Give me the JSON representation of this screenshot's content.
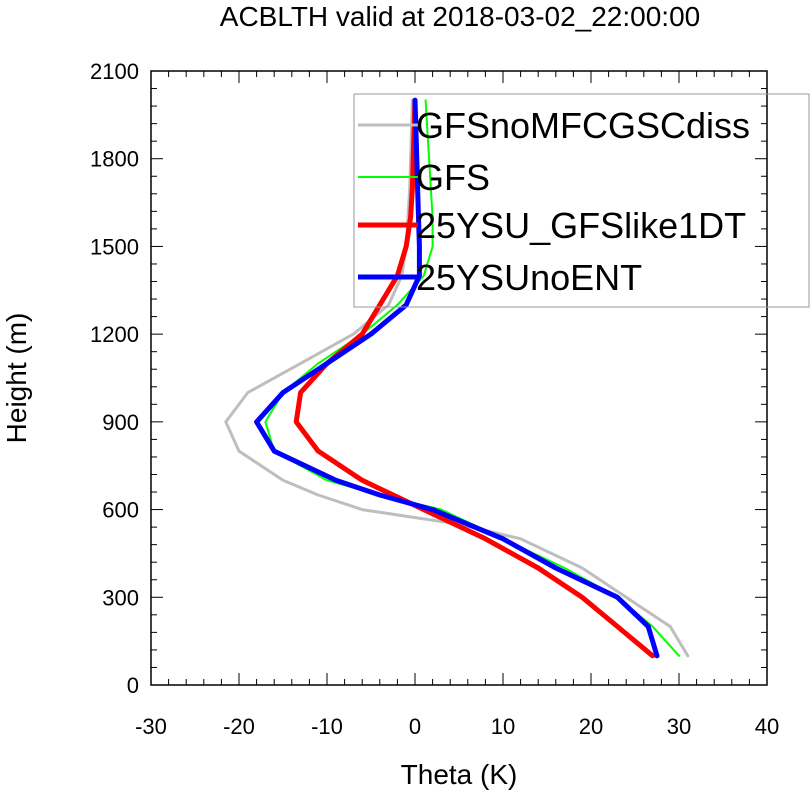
{
  "chart_data": {
    "type": "line",
    "title": "ACBLTH valid at 2018-03-02_22:00:00",
    "xlabel": "Theta (K)",
    "ylabel": "Height (m)",
    "xlim": [
      -30,
      40
    ],
    "ylim": [
      0,
      2100
    ],
    "xticks": [
      -30,
      -20,
      -10,
      0,
      10,
      20,
      30,
      40
    ],
    "yticks": [
      0,
      300,
      600,
      900,
      1200,
      1500,
      1800,
      2100
    ],
    "legend_position": "top-right",
    "grid": false,
    "series": [
      {
        "name": "GFSnoMFCGSCdiss",
        "color": "#bebebe",
        "width": 3,
        "points": [
          [
            31,
            100
          ],
          [
            29,
            200
          ],
          [
            24,
            300
          ],
          [
            19,
            400
          ],
          [
            12,
            500
          ],
          [
            5,
            550
          ],
          [
            -6,
            600
          ],
          [
            -11,
            650
          ],
          [
            -15,
            700
          ],
          [
            -20,
            800
          ],
          [
            -21.5,
            900
          ],
          [
            -19,
            1000
          ],
          [
            -13,
            1100
          ],
          [
            -7,
            1200
          ],
          [
            -3,
            1300
          ],
          [
            -1.5,
            1400
          ],
          [
            -1,
            1500
          ],
          [
            -0.8,
            1600
          ],
          [
            -0.6,
            1700
          ],
          [
            -0.5,
            1800
          ],
          [
            -0.4,
            1900
          ],
          [
            -0.3,
            2000
          ]
        ]
      },
      {
        "name": "GFS",
        "color": "#00ff00",
        "width": 2,
        "points": [
          [
            30,
            100
          ],
          [
            27,
            200
          ],
          [
            23,
            300
          ],
          [
            17,
            400
          ],
          [
            10,
            500
          ],
          [
            3,
            600
          ],
          [
            -4,
            650
          ],
          [
            -10,
            700
          ],
          [
            -16,
            800
          ],
          [
            -17,
            900
          ],
          [
            -15,
            1000
          ],
          [
            -11,
            1100
          ],
          [
            -6,
            1200
          ],
          [
            -2,
            1300
          ],
          [
            1,
            1400
          ],
          [
            2,
            1500
          ],
          [
            2,
            1600
          ],
          [
            1.8,
            1700
          ],
          [
            1.6,
            1800
          ],
          [
            1.4,
            1900
          ],
          [
            1.2,
            2000
          ]
        ]
      },
      {
        "name": "25YSU_GFSlike1DT",
        "color": "#ff0000",
        "width": 5,
        "points": [
          [
            27,
            100
          ],
          [
            23,
            200
          ],
          [
            19,
            300
          ],
          [
            14,
            400
          ],
          [
            8,
            500
          ],
          [
            1,
            600
          ],
          [
            -6,
            700
          ],
          [
            -11,
            800
          ],
          [
            -13.5,
            900
          ],
          [
            -13,
            1000
          ],
          [
            -10,
            1100
          ],
          [
            -6,
            1200
          ],
          [
            -4,
            1300
          ],
          [
            -2,
            1400
          ],
          [
            -1,
            1500
          ],
          [
            -0.5,
            1600
          ],
          [
            -0.3,
            1700
          ],
          [
            -0.2,
            1800
          ],
          [
            -0.1,
            1900
          ],
          [
            0,
            2000
          ]
        ]
      },
      {
        "name": "25YSUnoENT",
        "color": "#0000ff",
        "width": 5,
        "points": [
          [
            27.5,
            100
          ],
          [
            26.5,
            200
          ],
          [
            23,
            300
          ],
          [
            16,
            400
          ],
          [
            10,
            500
          ],
          [
            2,
            600
          ],
          [
            -4,
            650
          ],
          [
            -9,
            700
          ],
          [
            -16,
            800
          ],
          [
            -18,
            900
          ],
          [
            -15,
            1000
          ],
          [
            -10,
            1100
          ],
          [
            -5,
            1200
          ],
          [
            -1,
            1300
          ],
          [
            0.5,
            1400
          ],
          [
            0.5,
            1500
          ],
          [
            0.4,
            1600
          ],
          [
            0.3,
            1700
          ],
          [
            0.2,
            1800
          ],
          [
            0.1,
            1900
          ],
          [
            0,
            2000
          ]
        ]
      }
    ]
  }
}
